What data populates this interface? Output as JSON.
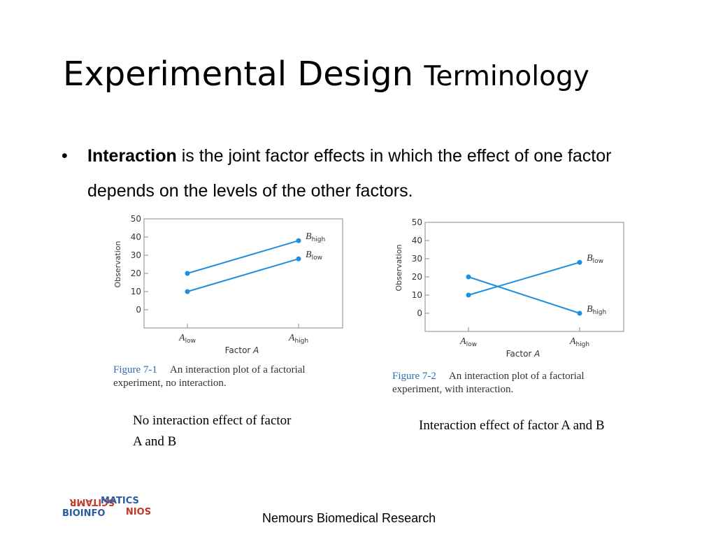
{
  "slide": {
    "title_main": "Experimental Design",
    "title_small": "Terminology",
    "bullet_marker": "•",
    "bullet_bold": "Interaction",
    "bullet_rest": " is the joint factor effects in which the effect of one factor depends on the levels of the other factors.",
    "footer": "Nemours Biomedical Research",
    "logo_text": "BIOINFORMATICS"
  },
  "figures": [
    {
      "label": "Figure 7-1",
      "caption": "An interaction plot of a factorial experiment, no interaction.",
      "note": "No interaction effect of factor A and B"
    },
    {
      "label": "Figure 7-2",
      "caption": "An interaction plot of a factorial experiment, with interaction.",
      "note": "Interaction effect of factor A and B"
    }
  ],
  "chart_data": [
    {
      "type": "line",
      "title": "",
      "xlabel": "Factor A",
      "ylabel": "Observation",
      "categories": [
        "A_low",
        "A_high"
      ],
      "category_labels": [
        {
          "base": "A",
          "sub": "low"
        },
        {
          "base": "A",
          "sub": "high"
        }
      ],
      "ylim": [
        0,
        50
      ],
      "yticks": [
        0,
        10,
        20,
        30,
        40,
        50
      ],
      "series": [
        {
          "name": "B_high",
          "label_base": "B",
          "label_sub": "high",
          "values": [
            20,
            38
          ]
        },
        {
          "name": "B_low",
          "label_base": "B",
          "label_sub": "low",
          "values": [
            10,
            28
          ]
        }
      ],
      "color": "#1e8ee0",
      "grid": false
    },
    {
      "type": "line",
      "title": "",
      "xlabel": "Factor A",
      "ylabel": "Observation",
      "categories": [
        "A_low",
        "A_high"
      ],
      "category_labels": [
        {
          "base": "A",
          "sub": "low"
        },
        {
          "base": "A",
          "sub": "high"
        }
      ],
      "ylim": [
        0,
        50
      ],
      "yticks": [
        0,
        10,
        20,
        30,
        40,
        50
      ],
      "series": [
        {
          "name": "B_low",
          "label_base": "B",
          "label_sub": "low",
          "values": [
            10,
            28
          ]
        },
        {
          "name": "B_high",
          "label_base": "B",
          "label_sub": "high",
          "values": [
            20,
            0
          ]
        }
      ],
      "color": "#1e8ee0",
      "grid": false
    }
  ]
}
